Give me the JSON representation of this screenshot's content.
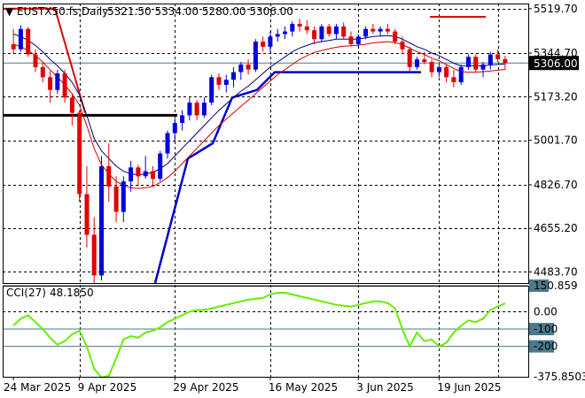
{
  "chart_data": {
    "type": "candlestick",
    "symbol": "EUSTX50.fs,Daily",
    "ohlc_header": "5321.50 5334.00 5280.00 5306.00",
    "last_price": "5306.00",
    "price_ticks": [
      "5519.70",
      "5344.70",
      "5173.20",
      "5001.70",
      "4826.70",
      "4655.20",
      "4483.70"
    ],
    "date_ticks": [
      "24 Mar 2025",
      "9 Apr 2025",
      "29 Apr 2025",
      "16 May 2025",
      "3 Jun 2025",
      "19 Jun 2025"
    ],
    "ylim": [
      4440,
      5540
    ],
    "candles": [
      [
        5380,
        5440,
        5340,
        5360
      ],
      [
        5360,
        5455,
        5350,
        5440
      ],
      [
        5440,
        5448,
        5330,
        5340
      ],
      [
        5340,
        5360,
        5270,
        5290
      ],
      [
        5290,
        5305,
        5230,
        5250
      ],
      [
        5250,
        5275,
        5150,
        5200
      ],
      [
        5200,
        5280,
        5185,
        5265
      ],
      [
        5265,
        5280,
        5150,
        5170
      ],
      [
        5170,
        5185,
        5060,
        5110
      ],
      [
        5110,
        5120,
        4760,
        4790
      ],
      [
        4790,
        4900,
        4580,
        4630
      ],
      [
        4630,
        4700,
        4440,
        4470
      ],
      [
        4470,
        4940,
        4450,
        4900
      ],
      [
        4900,
        4990,
        4760,
        4820
      ],
      [
        4820,
        4860,
        4680,
        4720
      ],
      [
        4720,
        4860,
        4680,
        4840
      ],
      [
        4840,
        4920,
        4800,
        4895
      ],
      [
        4895,
        4905,
        4820,
        4860
      ],
      [
        4860,
        4940,
        4850,
        4880
      ],
      [
        4880,
        4900,
        4820,
        4850
      ],
      [
        4850,
        4960,
        4840,
        4950
      ],
      [
        4950,
        5040,
        4930,
        5030
      ],
      [
        5030,
        5090,
        5000,
        5070
      ],
      [
        5070,
        5120,
        5040,
        5100
      ],
      [
        5100,
        5170,
        5080,
        5150
      ],
      [
        5150,
        5160,
        5080,
        5100
      ],
      [
        5100,
        5170,
        5090,
        5150
      ],
      [
        5150,
        5260,
        5140,
        5250
      ],
      [
        5250,
        5265,
        5200,
        5220
      ],
      [
        5220,
        5260,
        5190,
        5240
      ],
      [
        5240,
        5290,
        5210,
        5270
      ],
      [
        5270,
        5310,
        5240,
        5300
      ],
      [
        5300,
        5320,
        5260,
        5280
      ],
      [
        5280,
        5400,
        5270,
        5390
      ],
      [
        5390,
        5410,
        5350,
        5370
      ],
      [
        5370,
        5430,
        5350,
        5410
      ],
      [
        5410,
        5440,
        5390,
        5420
      ],
      [
        5420,
        5450,
        5400,
        5430
      ],
      [
        5430,
        5470,
        5410,
        5460
      ],
      [
        5460,
        5480,
        5430,
        5450
      ],
      [
        5450,
        5475,
        5420,
        5435
      ],
      [
        5435,
        5450,
        5380,
        5400
      ],
      [
        5400,
        5460,
        5390,
        5450
      ],
      [
        5450,
        5460,
        5410,
        5420
      ],
      [
        5420,
        5460,
        5400,
        5450
      ],
      [
        5450,
        5465,
        5400,
        5410
      ],
      [
        5410,
        5430,
        5370,
        5380
      ],
      [
        5380,
        5420,
        5370,
        5410
      ],
      [
        5410,
        5450,
        5400,
        5440
      ],
      [
        5440,
        5460,
        5420,
        5430
      ],
      [
        5430,
        5450,
        5410,
        5440
      ],
      [
        5440,
        5460,
        5420,
        5430
      ],
      [
        5430,
        5440,
        5380,
        5390
      ],
      [
        5390,
        5410,
        5340,
        5360
      ],
      [
        5360,
        5370,
        5270,
        5290
      ],
      [
        5290,
        5330,
        5280,
        5320
      ],
      [
        5320,
        5350,
        5300,
        5310
      ],
      [
        5310,
        5320,
        5250,
        5270
      ],
      [
        5270,
        5300,
        5250,
        5290
      ],
      [
        5290,
        5300,
        5230,
        5250
      ],
      [
        5250,
        5280,
        5210,
        5230
      ],
      [
        5230,
        5300,
        5220,
        5290
      ],
      [
        5290,
        5340,
        5280,
        5330
      ],
      [
        5330,
        5340,
        5270,
        5280
      ],
      [
        5280,
        5310,
        5250,
        5300
      ],
      [
        5300,
        5350,
        5280,
        5340
      ],
      [
        5340,
        5360,
        5310,
        5321.5
      ],
      [
        5321.5,
        5334,
        5280,
        5306
      ]
    ],
    "ma_fast": [
      5420,
      5410,
      5395,
      5375,
      5350,
      5320,
      5295,
      5265,
      5230,
      5180,
      5100,
      5010,
      4960,
      4930,
      4900,
      4880,
      4870,
      4865,
      4870,
      4875,
      4890,
      4910,
      4940,
      4970,
      5000,
      5030,
      5060,
      5090,
      5120,
      5145,
      5170,
      5195,
      5215,
      5240,
      5265,
      5290,
      5310,
      5330,
      5350,
      5365,
      5375,
      5385,
      5390,
      5395,
      5400,
      5400,
      5400,
      5400,
      5405,
      5410,
      5412,
      5414,
      5410,
      5400,
      5385,
      5370,
      5360,
      5345,
      5335,
      5320,
      5305,
      5295,
      5295,
      5295,
      5295,
      5298,
      5300,
      5302
    ],
    "ma_slow": [
      5380,
      5370,
      5355,
      5335,
      5310,
      5280,
      5250,
      5220,
      5185,
      5140,
      5060,
      4970,
      4905,
      4870,
      4840,
      4825,
      4815,
      4812,
      4815,
      4820,
      4835,
      4855,
      4880,
      4910,
      4940,
      4970,
      5000,
      5030,
      5060,
      5085,
      5110,
      5135,
      5160,
      5185,
      5210,
      5235,
      5260,
      5280,
      5300,
      5320,
      5335,
      5348,
      5355,
      5362,
      5368,
      5372,
      5374,
      5376,
      5380,
      5385,
      5388,
      5390,
      5386,
      5378,
      5365,
      5350,
      5340,
      5325,
      5315,
      5300,
      5285,
      5272,
      5270,
      5270,
      5272,
      5274,
      5278,
      5280
    ],
    "cci": {
      "name": "CCI(27)",
      "value_text": "48.1850",
      "ticks": [
        "150.859",
        "0.00",
        "-100",
        "-200",
        "-375.8503"
      ],
      "ylim": [
        -375.85,
        150.859
      ],
      "values": [
        -80,
        -40,
        -20,
        -60,
        -100,
        -150,
        -190,
        -170,
        -130,
        -110,
        -200,
        -330,
        -380,
        -370,
        -270,
        -160,
        -140,
        -150,
        -120,
        -110,
        -90,
        -60,
        -40,
        -20,
        0,
        10,
        10,
        20,
        30,
        40,
        50,
        60,
        70,
        75,
        80,
        100,
        110,
        110,
        100,
        90,
        80,
        70,
        60,
        50,
        40,
        35,
        30,
        40,
        50,
        60,
        60,
        50,
        20,
        -100,
        -200,
        -120,
        -170,
        -160,
        -200,
        -180,
        -120,
        -80,
        -50,
        -60,
        -40,
        10,
        30,
        48
      ]
    }
  }
}
